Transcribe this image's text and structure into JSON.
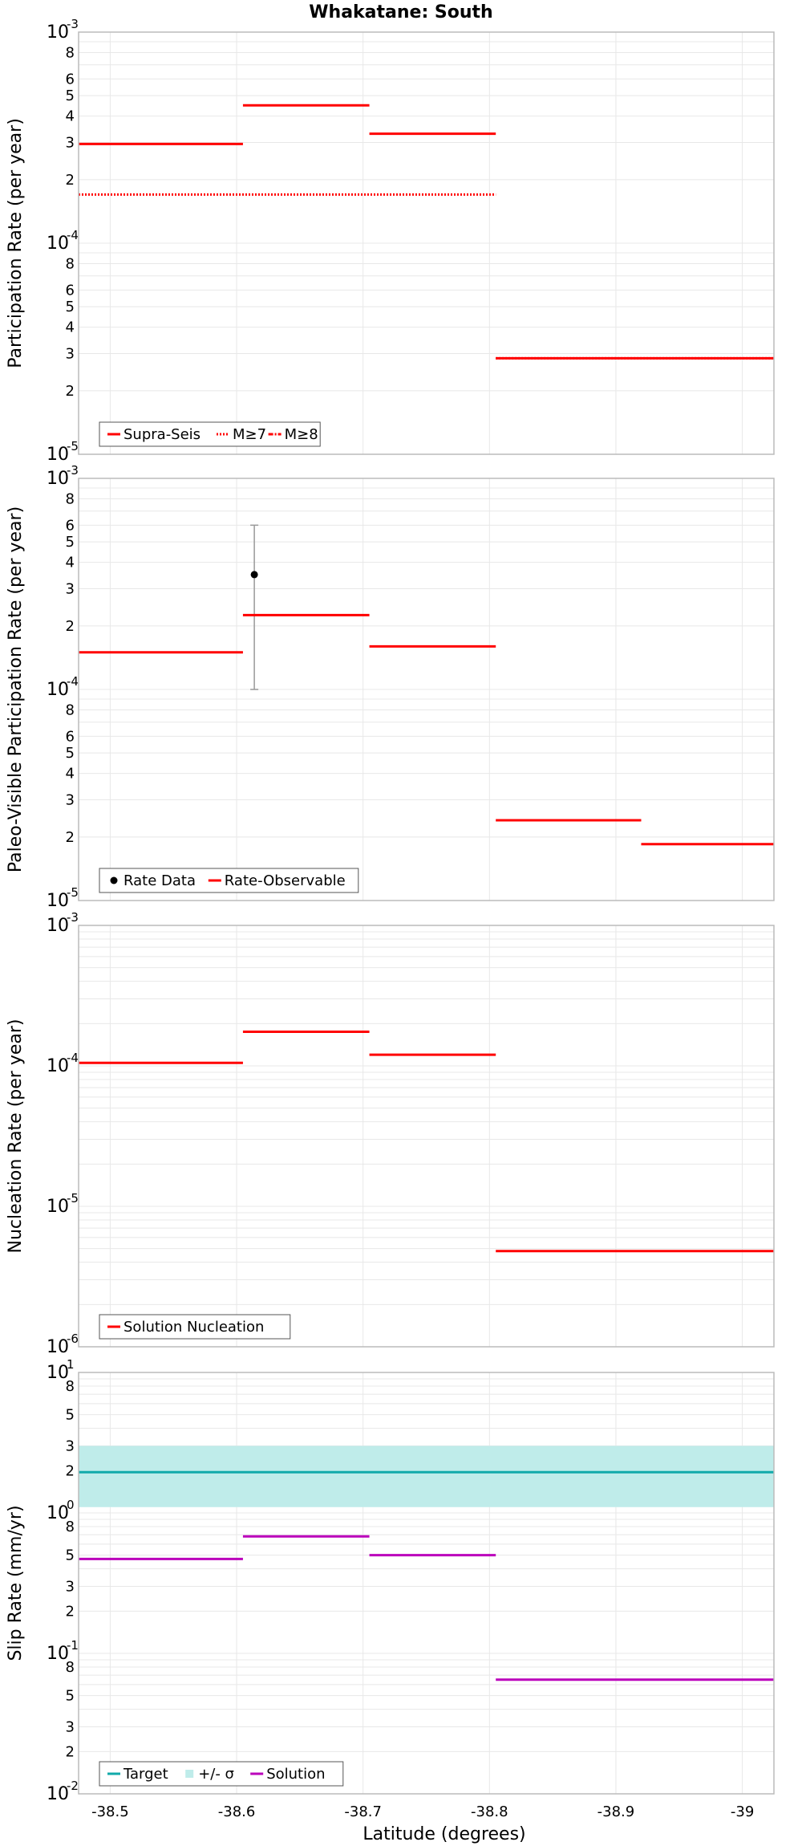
{
  "title": "Whakatane: South",
  "xlabel": "Latitude (degrees)",
  "colors": {
    "red": "#ff0000",
    "purple": "#bb00bb",
    "teal": "#11aaaa",
    "band": "#bfecea",
    "errorbar": "#999999",
    "grid": "#e8e8e8",
    "frame": "#bbbbbb"
  },
  "chart_data": [
    {
      "type": "line",
      "ylabel": "Participation Rate (per year)",
      "yscale": "log",
      "xlim": [
        -38.475,
        -39.025
      ],
      "ylim": [
        1e-05,
        0.001
      ],
      "x_ticks": [
        -38.5,
        -38.6,
        -38.7,
        -38.8,
        -38.9,
        -39.0
      ],
      "x_tick_labels": [
        "-38.5",
        "-38.6",
        "-38.7",
        "-38.8",
        "-38.9",
        "-39"
      ],
      "legend": {
        "placement": "bottom-left",
        "entries": [
          "Supra-Seis",
          "M≥7",
          "M≥8"
        ]
      },
      "series": [
        {
          "name": "Supra-Seis",
          "style": "solid",
          "color": "#ff0000",
          "segments": [
            {
              "x": [
                -38.475,
                -38.605
              ],
              "y": 0.000295
            },
            {
              "x": [
                -38.605,
                -38.705
              ],
              "y": 0.00045
            },
            {
              "x": [
                -38.705,
                -38.805
              ],
              "y": 0.00033
            },
            {
              "x": [
                -38.805,
                -39.025
              ],
              "y": 2.85e-05
            }
          ]
        },
        {
          "name": "M≥7",
          "style": "dotted",
          "color": "#ff0000",
          "segments": [
            {
              "x": [
                -38.475,
                -38.805
              ],
              "y": 0.00017
            },
            {
              "x": [
                -38.805,
                -39.025
              ],
              "y": 2.85e-05
            }
          ]
        },
        {
          "name": "M≥8",
          "style": "dashdot",
          "color": "#ff0000",
          "segments": []
        }
      ]
    },
    {
      "type": "line",
      "ylabel": "Paleo-Visible Participation Rate (per year)",
      "yscale": "log",
      "xlim": [
        -38.475,
        -39.025
      ],
      "ylim": [
        1e-05,
        0.001
      ],
      "legend": {
        "placement": "bottom-left",
        "entries": [
          "Rate Data",
          "Rate-Observable"
        ]
      },
      "series": [
        {
          "name": "Rate Data",
          "style": "point",
          "color": "#000000",
          "points": [
            {
              "x": -38.614,
              "y": 0.00035,
              "err_low": 0.0001,
              "err_high": 0.0006
            }
          ]
        },
        {
          "name": "Rate-Observable",
          "style": "solid",
          "color": "#ff0000",
          "segments": [
            {
              "x": [
                -38.475,
                -38.605
              ],
              "y": 0.00015
            },
            {
              "x": [
                -38.605,
                -38.705
              ],
              "y": 0.000225
            },
            {
              "x": [
                -38.705,
                -38.805
              ],
              "y": 0.00016
            },
            {
              "x": [
                -38.805,
                -38.92
              ],
              "y": 2.4e-05
            },
            {
              "x": [
                -38.92,
                -39.025
              ],
              "y": 1.85e-05
            }
          ]
        }
      ]
    },
    {
      "type": "line",
      "ylabel": "Nucleation Rate (per year)",
      "yscale": "log",
      "xlim": [
        -38.475,
        -39.025
      ],
      "ylim": [
        1e-06,
        0.001
      ],
      "legend": {
        "placement": "bottom-left",
        "entries": [
          "Solution Nucleation"
        ]
      },
      "series": [
        {
          "name": "Solution Nucleation",
          "style": "solid",
          "color": "#ff0000",
          "segments": [
            {
              "x": [
                -38.475,
                -38.605
              ],
              "y": 0.000105
            },
            {
              "x": [
                -38.605,
                -38.705
              ],
              "y": 0.000175
            },
            {
              "x": [
                -38.705,
                -38.805
              ],
              "y": 0.00012
            },
            {
              "x": [
                -38.805,
                -39.025
              ],
              "y": 4.8e-06
            }
          ]
        }
      ]
    },
    {
      "type": "line",
      "ylabel": "Slip Rate (mm/yr)",
      "yscale": "log",
      "xlim": [
        -38.475,
        -39.025
      ],
      "ylim": [
        0.01,
        10
      ],
      "legend": {
        "placement": "bottom-left",
        "entries": [
          "Target",
          "+/- σ",
          "Solution"
        ]
      },
      "series": [
        {
          "name": "Target",
          "style": "solid",
          "color": "#11aaaa",
          "segments": [
            {
              "x": [
                -38.475,
                -39.025
              ],
              "y": 1.95
            }
          ]
        },
        {
          "name": "+/- σ",
          "style": "band",
          "color": "#bfecea",
          "band": {
            "x": [
              -38.475,
              -39.025
            ],
            "y_low": 1.1,
            "y_high": 3.0
          }
        },
        {
          "name": "Solution",
          "style": "solid",
          "color": "#bb00bb",
          "segments": [
            {
              "x": [
                -38.475,
                -38.605
              ],
              "y": 0.47
            },
            {
              "x": [
                -38.605,
                -38.705
              ],
              "y": 0.68
            },
            {
              "x": [
                -38.705,
                -38.805
              ],
              "y": 0.5
            },
            {
              "x": [
                -38.805,
                -39.025
              ],
              "y": 0.065
            }
          ]
        }
      ]
    }
  ]
}
